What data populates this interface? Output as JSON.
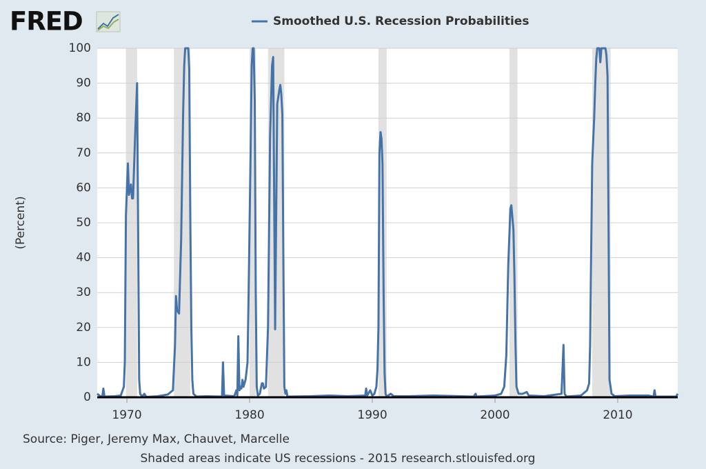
{
  "logo": "FRED",
  "chart_data": {
    "type": "line",
    "y_label": "(Percent)",
    "source": "Source: Piger, Jeremy Max, Chauvet, Marcelle",
    "note": "Shaded areas indicate US recessions - 2015 research.stlouisfed.org",
    "xlim": [
      1967.58,
      2014.89
    ],
    "xticks": [
      1970,
      1980,
      1990,
      2000,
      2010
    ],
    "ylim": [
      0,
      100
    ],
    "yticks": [
      0,
      10,
      20,
      30,
      40,
      50,
      60,
      70,
      80,
      90,
      100
    ],
    "grid": true,
    "recession_color": "#e1e1e1",
    "recessions": [
      [
        1969.92,
        1970.83
      ],
      [
        1973.83,
        1975.17
      ],
      [
        1980.0,
        1980.5
      ],
      [
        1981.5,
        1982.83
      ],
      [
        1990.5,
        1991.17
      ],
      [
        2001.17,
        2001.83
      ],
      [
        2007.92,
        2009.42
      ]
    ],
    "x": [
      1967.58,
      1967.83,
      1968.0,
      1968.08,
      1968.17,
      1969.0,
      1969.5,
      1969.75,
      1969.83,
      1969.92,
      1970.08,
      1970.17,
      1970.33,
      1970.42,
      1970.5,
      1970.67,
      1970.83,
      1970.92,
      1971.0,
      1971.08,
      1971.25,
      1971.42,
      1971.58,
      1972.5,
      1973.33,
      1973.75,
      1973.92,
      1974.0,
      1974.08,
      1974.25,
      1974.42,
      1974.58,
      1974.67,
      1974.75,
      1975.0,
      1975.08,
      1975.17,
      1975.25,
      1975.33,
      1975.42,
      1975.67,
      1976.5,
      1977.75,
      1977.83,
      1977.92,
      1978.75,
      1978.92,
      1979.0,
      1979.08,
      1979.17,
      1979.25,
      1979.33,
      1979.42,
      1979.5,
      1979.67,
      1979.83,
      1979.92,
      1980.08,
      1980.17,
      1980.25,
      1980.33,
      1980.42,
      1980.5,
      1980.58,
      1980.67,
      1980.83,
      1981.0,
      1981.08,
      1981.17,
      1981.33,
      1981.5,
      1981.67,
      1981.83,
      1981.92,
      1982.08,
      1982.25,
      1982.42,
      1982.5,
      1982.58,
      1982.67,
      1982.75,
      1982.83,
      1982.92,
      1983.0,
      1983.08,
      1985.0,
      1986.5,
      1988.0,
      1989.42,
      1989.5,
      1989.58,
      1989.83,
      1990.0,
      1990.17,
      1990.33,
      1990.42,
      1990.5,
      1990.58,
      1990.67,
      1990.75,
      1990.83,
      1990.92,
      1991.0,
      1991.08,
      1991.17,
      1991.5,
      1991.75,
      1993.0,
      1995.0,
      1998.25,
      1998.42,
      1998.5,
      2000.0,
      2000.5,
      2000.75,
      2000.92,
      2001.08,
      2001.25,
      2001.33,
      2001.5,
      2001.58,
      2001.67,
      2001.75,
      2001.92,
      2002.25,
      2002.58,
      2002.75,
      2004.0,
      2005.42,
      2005.58,
      2005.67,
      2005.83,
      2007.0,
      2007.5,
      2007.67,
      2007.75,
      2007.83,
      2007.92,
      2008.08,
      2008.17,
      2008.25,
      2008.33,
      2008.5,
      2008.58,
      2008.67,
      2009.0,
      2009.08,
      2009.17,
      2009.25,
      2009.33,
      2009.5,
      2009.75,
      2011.0,
      2012.5,
      2012.92,
      2013.0,
      2013.08,
      2014.75,
      2014.89
    ],
    "series": [
      {
        "name": "Smoothed U.S. Recession Probabilities",
        "color": "#4572a7",
        "values": [
          1,
          0.3,
          0.3,
          2.5,
          0.2,
          0.3,
          0.5,
          3,
          10,
          52,
          67,
          58,
          61,
          57,
          57,
          75,
          90,
          45,
          5,
          1,
          0.2,
          1,
          0.1,
          0.3,
          0.8,
          2,
          15,
          29,
          25,
          24,
          45,
          81,
          95,
          100,
          100,
          94,
          50,
          20,
          5,
          1,
          0.2,
          0.3,
          0.2,
          10,
          0.5,
          0.3,
          2,
          0.5,
          17.5,
          2,
          3,
          2.5,
          5,
          3,
          5,
          10,
          30,
          70,
          95,
          100,
          100,
          85,
          30,
          3,
          0.5,
          1,
          4,
          4,
          2.5,
          3,
          20,
          75,
          95,
          97.5,
          19.5,
          84,
          88,
          89.5,
          87,
          81,
          40,
          3,
          1,
          2,
          0.2,
          0.3,
          0.5,
          0.3,
          0.5,
          2.5,
          0.5,
          2,
          0.5,
          1,
          3,
          8,
          20,
          70,
          76,
          74,
          67,
          30,
          7,
          1,
          0.2,
          1,
          0.3,
          0.3,
          0.5,
          0.2,
          1,
          0.2,
          0.5,
          1,
          3,
          12,
          38,
          54,
          55,
          48,
          35,
          15,
          3,
          1,
          1,
          1.5,
          0.5,
          0.3,
          1,
          15,
          1,
          0.2,
          0.5,
          2,
          4,
          15,
          40,
          67,
          80,
          90,
          97,
          100,
          100,
          96,
          100,
          100,
          98,
          92,
          50,
          5,
          1,
          0.3,
          0.5,
          0.5,
          0.2,
          2,
          0.2,
          0.2,
          1
        ]
      }
    ]
  }
}
